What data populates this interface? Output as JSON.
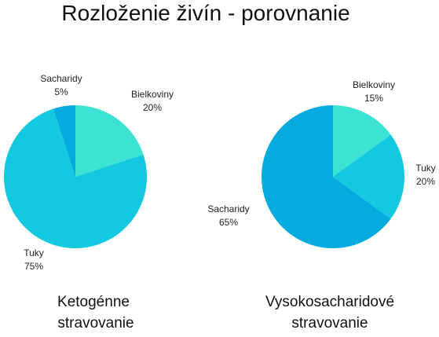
{
  "title": "Rozloženie živín - porovnanie",
  "chart_data": [
    {
      "type": "pie",
      "caption": [
        "Ketogénne",
        "stravovanie"
      ],
      "slices": [
        {
          "label": "Bielkoviny",
          "value": 20,
          "value_label": "20%",
          "color": "#3de3d2"
        },
        {
          "label": "Tuky",
          "value": 75,
          "value_label": "75%",
          "color": "#12c9df"
        },
        {
          "label": "Sacharidy",
          "value": 5,
          "value_label": "5%",
          "color": "#05aadf"
        }
      ]
    },
    {
      "type": "pie",
      "caption": [
        "Vysokosacharidové",
        "stravovanie"
      ],
      "slices": [
        {
          "label": "Bielkoviny",
          "value": 15,
          "value_label": "15%",
          "color": "#3de3d2"
        },
        {
          "label": "Tuky",
          "value": 20,
          "value_label": "20%",
          "color": "#12c9df"
        },
        {
          "label": "Sacharidy",
          "value": 65,
          "value_label": "65%",
          "color": "#05aadf"
        }
      ]
    }
  ]
}
